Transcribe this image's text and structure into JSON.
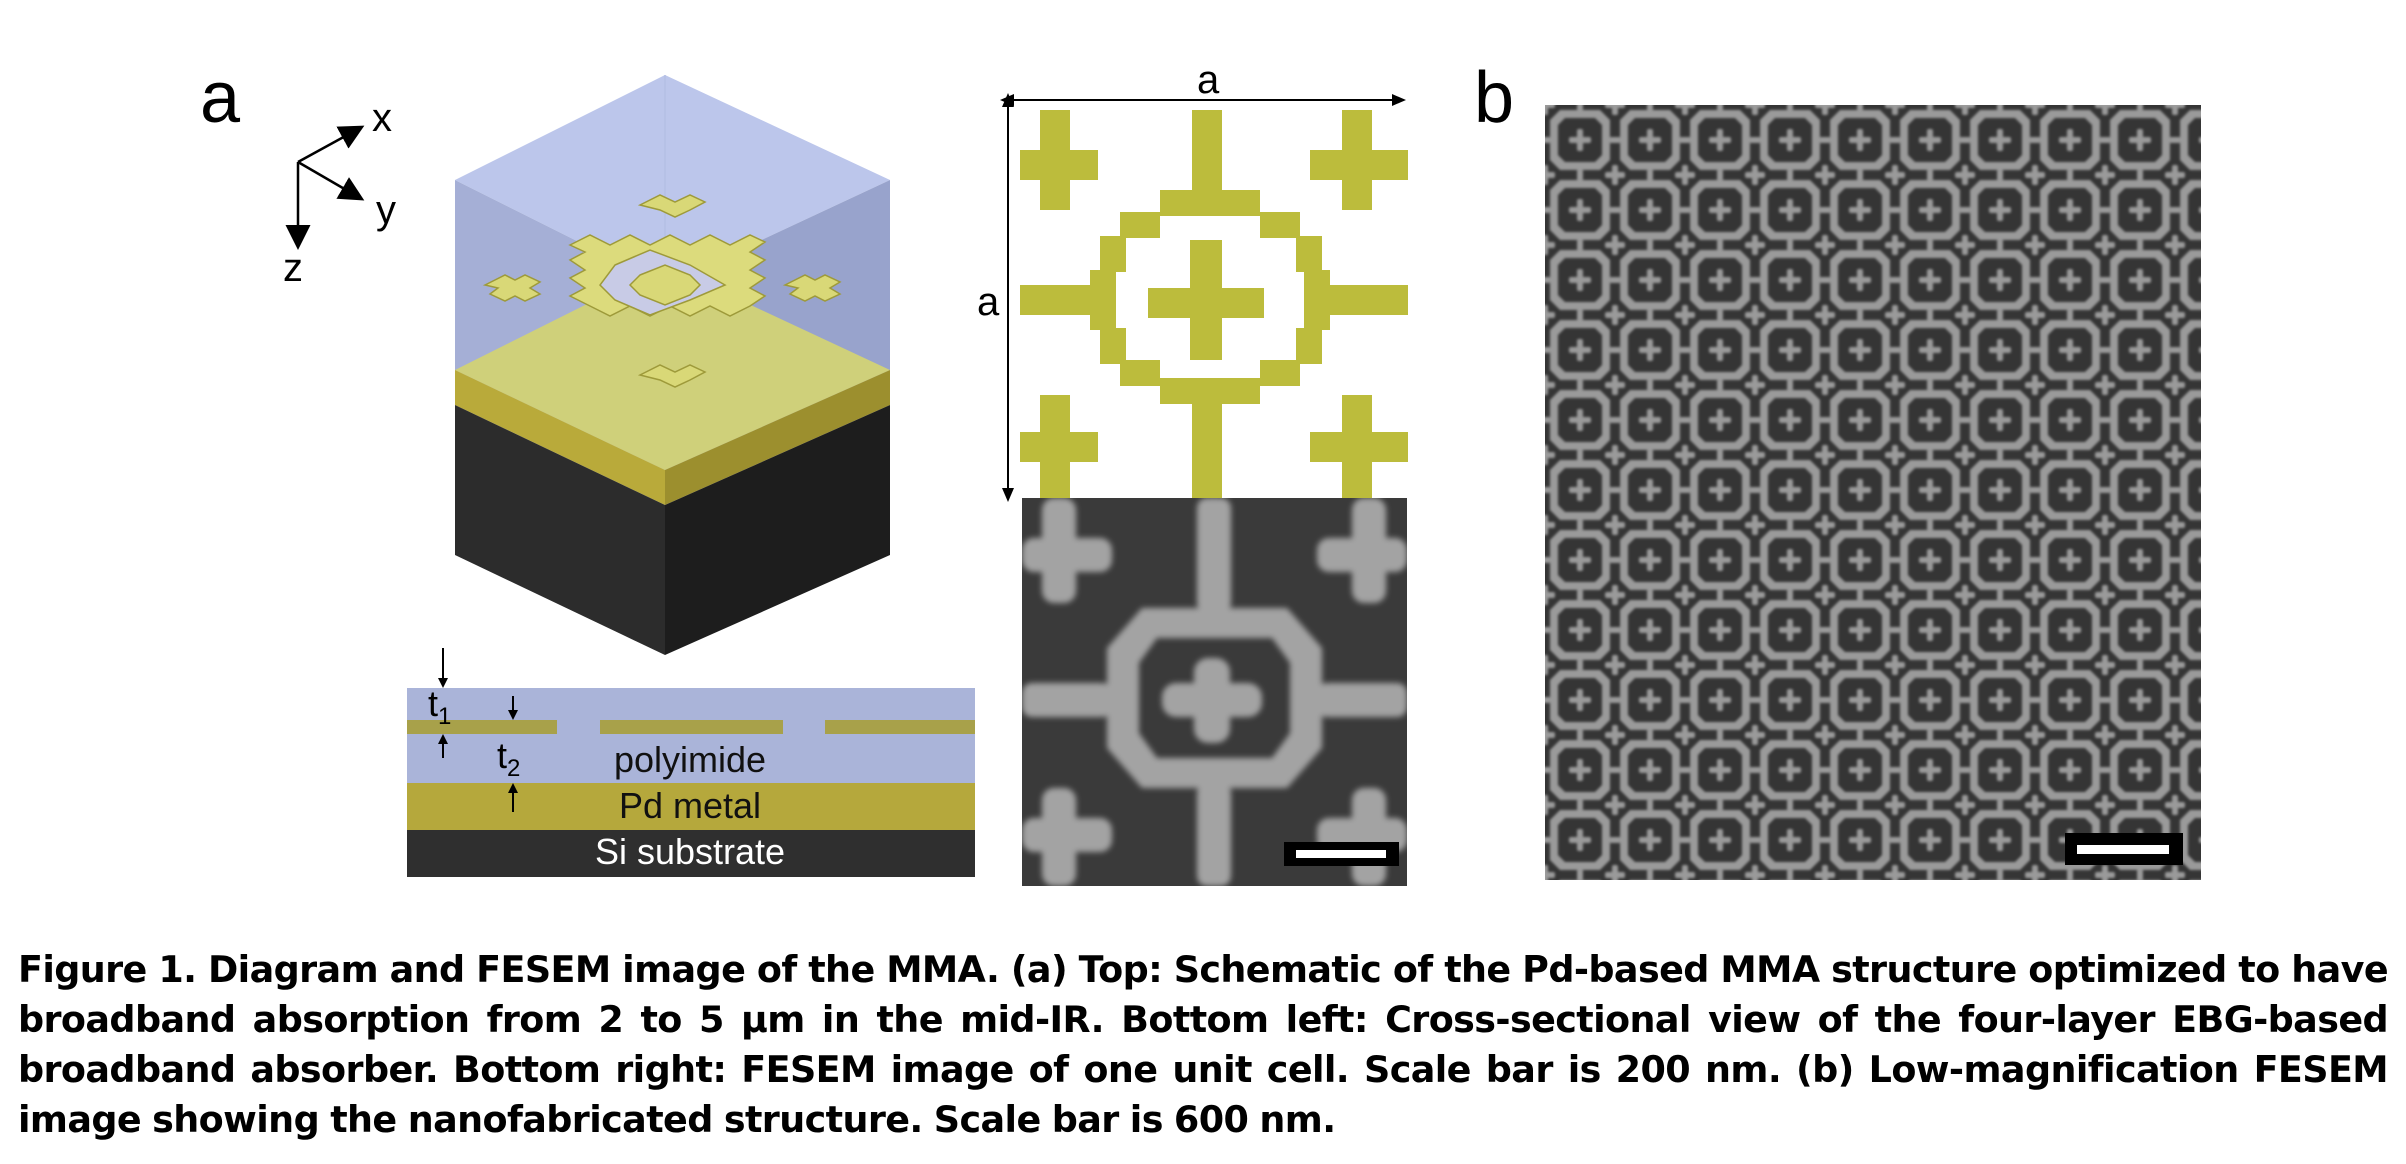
{
  "figure": {
    "panels": {
      "a": "a",
      "b": "b"
    },
    "axes": {
      "x": "x",
      "y": "y",
      "z": "z"
    },
    "unit_cell": {
      "width_label": "a",
      "height_label": "a"
    },
    "cross_section": {
      "t1_main": "t",
      "t1_sub": "1",
      "t2_main": "t",
      "t2_sub": "2",
      "layer_polyimide": "polyimide",
      "layer_metal": "Pd metal",
      "layer_substrate": "Si substrate"
    },
    "colors": {
      "polyimide": "#aab4d9",
      "gold": "#bbbb44",
      "metal_dark": "#b5a83c",
      "substrate": "#2f2f2f",
      "sem_bg": "#3a3a3a",
      "sem_pattern": "#a0a0a0"
    }
  },
  "caption": {
    "text": "Figure 1. Diagram and FESEM image of the MMA. (a) Top: Schematic of the Pd-based MMA structure optimized to have broadband absorption from 2 to 5 μm in the mid-IR. Bottom left: Cross-sectional view of the four-layer EBG-based broadband absorber. Bottom right: FESEM image of one unit cell. Scale bar is 200 nm. (b) Low-magnification FESEM image showing the nanofabricated structure. Scale bar is 600 nm."
  }
}
